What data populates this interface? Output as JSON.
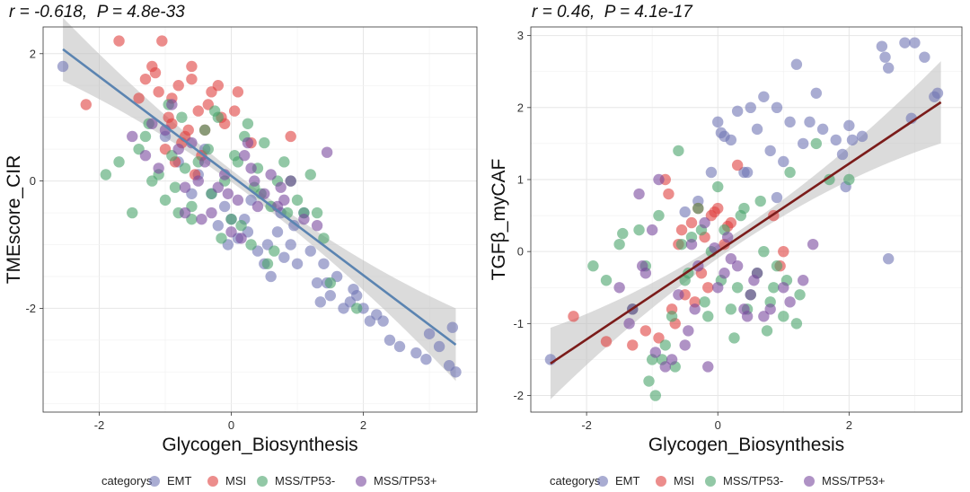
{
  "chart_data": [
    {
      "type": "scatter",
      "title": "r = -0.618,  P = 4.8e-33",
      "xlabel": "Glycogen_Biosynthesis",
      "ylabel": "TMEscore_CIR",
      "xlim": [
        -2.85,
        3.72
      ],
      "ylim": [
        -3.63,
        2.42
      ],
      "xticks": [
        -2,
        0,
        2
      ],
      "yticks": [
        -2,
        0,
        2
      ],
      "xtick_labels": [
        "-2",
        "0",
        "2"
      ],
      "ytick_labels": [
        "-2",
        "0",
        "2"
      ],
      "grid": true,
      "fit": {
        "intercept": 0.08,
        "slope": -0.78,
        "x_range": [
          -2.55,
          3.4
        ],
        "color": "#5b84b1"
      },
      "legend": {
        "title": "categorys",
        "position": "bottom",
        "entries": [
          "EMT",
          "MSI",
          "MSS/TP53-",
          "MSS/TP53+"
        ]
      },
      "series_colors": [
        "#6f74b4",
        "#e0413f",
        "#49a36b",
        "#7a4a9e"
      ],
      "series": [
        {
          "name": "EMT",
          "x": [
            -2.55,
            2.3,
            2.55,
            2.8,
            3.0,
            3.15,
            3.3,
            3.4,
            2.95,
            3.35,
            1.6,
            1.7,
            1.8,
            2.0,
            1.5,
            1.4,
            1.2,
            1.3,
            0.9,
            1.0,
            0.8,
            1.1,
            0.5,
            0.6,
            0.4,
            0.7,
            0.2,
            0.3,
            0.1,
            -0.2,
            -0.1,
            0.0,
            -0.3,
            -0.5,
            -0.8,
            -1.0,
            1.9,
            2.2,
            2.4,
            1.45,
            0.55,
            0.25,
            -0.05,
            0.75,
            0.95,
            1.35,
            -0.6,
            -0.4,
            2.1,
            1.85
          ],
          "y": [
            1.8,
            -2.2,
            -2.6,
            -2.7,
            -2.4,
            -2.6,
            -2.9,
            -3.0,
            -2.8,
            -2.3,
            -1.5,
            -2.0,
            -1.9,
            -2.0,
            -1.8,
            -1.3,
            -1.1,
            -1.6,
            -1.0,
            -1.3,
            -1.2,
            -0.5,
            -1.3,
            -1.5,
            -1.1,
            -0.8,
            -0.6,
            -0.3,
            -0.9,
            -0.7,
            -0.4,
            -0.6,
            -0.2,
            0.1,
            0.3,
            0.7,
            -1.8,
            -2.1,
            -2.5,
            -1.6,
            -1.0,
            -0.8,
            -1.0,
            -0.5,
            -0.7,
            -1.9,
            -0.2,
            0.5,
            -2.2,
            -1.7
          ]
        },
        {
          "name": "MSI",
          "x": [
            -2.2,
            -1.7,
            -1.3,
            -1.05,
            -0.9,
            -1.2,
            -1.1,
            -0.8,
            -0.6,
            -0.5,
            -0.3,
            -0.2,
            -0.1,
            0.1,
            -0.4,
            -0.7,
            -1.0,
            -0.9,
            -0.85,
            -0.75,
            -0.65,
            -0.95,
            -1.15,
            -0.55,
            0.05,
            0.9,
            0.3,
            -0.15,
            -0.45,
            -0.35,
            -1.4,
            -0.6
          ],
          "y": [
            1.2,
            2.2,
            1.6,
            2.2,
            1.3,
            1.8,
            1.4,
            1.5,
            1.6,
            1.1,
            1.4,
            1.5,
            0.9,
            1.4,
            0.8,
            0.7,
            0.5,
            0.9,
            0.3,
            0.6,
            0.8,
            1.0,
            1.7,
            0.1,
            1.1,
            0.7,
            0.6,
            1.0,
            0.4,
            1.2,
            1.3,
            1.8
          ]
        },
        {
          "name": "MSS/TP53-",
          "x": [
            -1.9,
            -1.7,
            -1.5,
            -1.4,
            -1.3,
            -1.2,
            -1.1,
            -1.0,
            -0.9,
            -0.8,
            -0.7,
            -0.6,
            -0.5,
            -0.4,
            -0.3,
            -0.2,
            -0.1,
            0.0,
            0.1,
            0.2,
            0.3,
            0.4,
            0.5,
            0.6,
            0.7,
            0.8,
            0.9,
            1.0,
            1.1,
            1.2,
            1.4,
            1.5,
            -0.95,
            -0.75,
            -0.25,
            0.15,
            0.35,
            0.65,
            0.85,
            -1.25,
            -0.35,
            0.45,
            1.3,
            -0.6,
            0.05,
            0.55,
            1.9,
            0.25,
            -0.85,
            -0.15
          ],
          "y": [
            0.1,
            0.3,
            -0.5,
            0.5,
            0.7,
            0.0,
            0.1,
            -0.3,
            0.4,
            -0.5,
            0.2,
            -0.4,
            0.3,
            0.8,
            -0.2,
            1.0,
            0.0,
            -0.6,
            0.3,
            0.7,
            -1.0,
            0.2,
            0.6,
            -0.4,
            0.0,
            0.3,
            0.0,
            -0.3,
            -0.5,
            0.1,
            -0.9,
            -1.6,
            1.2,
            1.0,
            1.1,
            -0.7,
            -0.1,
            -1.1,
            -0.5,
            0.9,
            0.5,
            -0.2,
            -0.5,
            -0.6,
            0.4,
            -1.3,
            -2.0,
            0.9,
            -0.1,
            -0.9
          ]
        },
        {
          "name": "MSS/TP53+",
          "x": [
            -1.5,
            -1.3,
            -1.1,
            -0.9,
            -0.7,
            -0.5,
            -0.3,
            -0.1,
            0.1,
            0.3,
            0.5,
            0.7,
            0.9,
            1.1,
            1.3,
            -1.2,
            -0.8,
            -0.4,
            0.0,
            0.4,
            0.8,
            -0.6,
            -0.2,
            0.2,
            0.6,
            -1.0,
            1.45,
            -0.45,
            0.15,
            -0.05,
            0.35,
            0.75,
            -0.7,
            0.25
          ],
          "y": [
            0.7,
            0.4,
            0.2,
            1.2,
            -0.1,
            0.0,
            -0.5,
            0.1,
            -0.3,
            0.2,
            -0.2,
            -0.4,
            0.0,
            -0.6,
            -0.7,
            0.9,
            0.5,
            0.3,
            -0.8,
            -0.4,
            -0.3,
            0.6,
            -0.1,
            0.4,
            0.1,
            0.8,
            0.45,
            -0.6,
            -0.9,
            -0.2,
            0.0,
            -0.1,
            -0.5,
            0.6
          ]
        }
      ]
    },
    {
      "type": "scatter",
      "title": "r = 0.46,  P = 4.1e-17",
      "xlabel": "Glycogen_Biosynthesis",
      "ylabel": "TGFβ_myCAF",
      "xlim": [
        -2.85,
        3.72
      ],
      "ylim": [
        -2.23,
        3.12
      ],
      "xticks": [
        -2,
        0,
        2
      ],
      "yticks": [
        -2,
        -1,
        0,
        1,
        2,
        3
      ],
      "xtick_labels": [
        "-2",
        "0",
        "2"
      ],
      "ytick_labels": [
        "-2",
        "-1",
        "0",
        "1",
        "2",
        "3"
      ],
      "grid": true,
      "fit": {
        "intercept": 0.0,
        "slope": 0.61,
        "x_range": [
          -2.55,
          3.4
        ],
        "color": "#7b1c1a"
      },
      "legend": {
        "title": "categorys",
        "position": "bottom",
        "entries": [
          "EMT",
          "MSI",
          "MSS/TP53-",
          "MSS/TP53+"
        ]
      },
      "series_colors": [
        "#6f74b4",
        "#e0413f",
        "#49a36b",
        "#7a4a9e"
      ],
      "series": [
        {
          "name": "EMT",
          "x": [
            -2.55,
            2.5,
            2.55,
            2.6,
            2.85,
            3.0,
            2.95,
            3.15,
            3.3,
            3.35,
            2.6,
            1.2,
            0.9,
            0.7,
            1.4,
            1.5,
            2.0,
            2.2,
            1.6,
            1.8,
            1.9,
            0.5,
            0.3,
            0.0,
            0.05,
            0.2,
            1.1,
            1.3,
            0.6,
            0.8,
            0.4,
            0.1,
            -0.1,
            -0.3,
            1.95,
            2.05,
            1.0,
            0.45,
            0.9,
            -0.5
          ],
          "y": [
            -1.5,
            2.85,
            2.7,
            2.55,
            2.9,
            2.9,
            1.85,
            2.7,
            2.15,
            2.2,
            -0.1,
            2.6,
            2.0,
            2.15,
            1.8,
            2.2,
            1.75,
            1.6,
            1.7,
            1.55,
            1.35,
            2.0,
            1.95,
            1.8,
            1.65,
            1.55,
            1.8,
            1.5,
            1.7,
            1.4,
            1.1,
            1.6,
            1.1,
            0.7,
            0.9,
            1.55,
            1.25,
            1.1,
            0.75,
            0.55
          ]
        },
        {
          "name": "MSI",
          "x": [
            -2.2,
            -1.7,
            -1.3,
            -1.1,
            -0.9,
            -0.7,
            -0.5,
            -0.3,
            -0.2,
            -0.1,
            0.0,
            0.1,
            0.2,
            0.3,
            -0.4,
            -0.6,
            -0.8,
            -0.75,
            -0.55,
            0.95,
            1.0,
            0.85,
            -0.25,
            -0.15,
            -0.65,
            0.15,
            -0.05,
            -0.35
          ],
          "y": [
            -0.9,
            -1.25,
            -1.3,
            -1.1,
            -1.2,
            -0.8,
            -0.6,
            0.6,
            0.2,
            0.5,
            0.6,
            0.1,
            0.4,
            1.2,
            0.4,
            0.1,
            1.0,
            0.8,
            0.3,
            -0.2,
            0.0,
            0.5,
            -0.3,
            -0.5,
            -1.0,
            0.35,
            0.55,
            -0.7
          ]
        },
        {
          "name": "MSS/TP53-",
          "x": [
            -1.9,
            -1.7,
            -1.5,
            -1.3,
            -1.2,
            -1.1,
            -1.0,
            -0.9,
            -0.8,
            -0.7,
            -0.6,
            -0.5,
            -0.4,
            -0.3,
            -0.2,
            -0.1,
            0.0,
            0.1,
            0.2,
            0.3,
            0.4,
            0.5,
            0.6,
            0.7,
            0.8,
            0.9,
            1.0,
            1.1,
            1.2,
            1.5,
            1.7,
            2.0,
            -1.05,
            -0.85,
            -0.65,
            -0.45,
            -0.25,
            0.05,
            0.25,
            0.45,
            0.65,
            0.85,
            -0.95,
            1.05,
            0.35,
            -0.55,
            0.75,
            -0.15,
            1.25,
            -1.45
          ],
          "y": [
            -0.2,
            -0.4,
            0.1,
            -0.8,
            0.3,
            -0.2,
            -1.5,
            0.5,
            -1.3,
            -0.9,
            1.4,
            -0.4,
            0.2,
            0.6,
            -0.7,
            0.0,
            0.9,
            0.3,
            -0.8,
            -0.5,
            0.6,
            -0.6,
            -0.3,
            0.0,
            -0.7,
            -0.2,
            -0.9,
            1.1,
            -1.0,
            1.5,
            1.0,
            1.0,
            -1.8,
            -1.5,
            -1.6,
            -0.3,
            0.3,
            -0.4,
            -1.2,
            -0.8,
            0.7,
            -0.5,
            -2.0,
            -0.4,
            0.5,
            0.1,
            -1.1,
            -0.9,
            -0.6,
            0.25
          ]
        },
        {
          "name": "MSS/TP53+",
          "x": [
            -1.5,
            -1.3,
            -1.2,
            -1.1,
            -1.0,
            -0.9,
            -0.8,
            -0.6,
            -0.5,
            -0.4,
            -0.3,
            -0.2,
            0.0,
            0.2,
            0.4,
            0.5,
            0.6,
            0.7,
            1.0,
            1.3,
            1.45,
            -0.7,
            -0.45,
            -0.15,
            0.1,
            0.3,
            -0.95,
            -1.15,
            0.45,
            0.55,
            -0.35,
            0.15,
            -1.35,
            0.8,
            1.1,
            -0.05
          ],
          "y": [
            -0.5,
            -0.8,
            0.8,
            -0.3,
            0.3,
            1.0,
            -1.6,
            -0.6,
            -1.3,
            0.1,
            -0.2,
            0.4,
            -0.5,
            -0.1,
            -0.8,
            -0.6,
            -0.3,
            -0.9,
            -0.5,
            -0.4,
            0.1,
            -1.5,
            -1.1,
            -1.6,
            -0.3,
            -0.2,
            -1.4,
            -0.2,
            -0.9,
            -0.4,
            -0.8,
            0.2,
            -1.0,
            -0.8,
            -0.7,
            0.05
          ]
        }
      ]
    }
  ]
}
